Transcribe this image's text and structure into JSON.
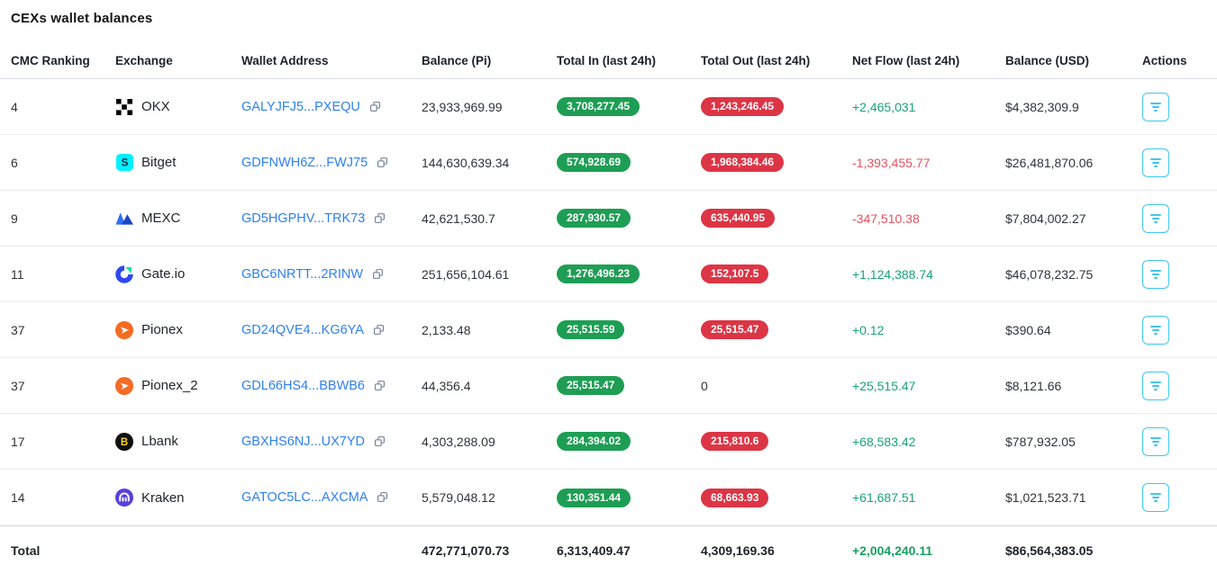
{
  "page": {
    "title": "CEXs wallet balances"
  },
  "colors": {
    "pill_green": "#1e9e54",
    "pill_red": "#dc3545",
    "net_flow_positive": "#18a17b",
    "net_flow_negative": "#e9515f",
    "address_link": "#2e80f2",
    "action_button_border": "#3ec7f0"
  },
  "table": {
    "columns": [
      "CMC Ranking",
      "Exchange",
      "Wallet Address",
      "Balance (Pi)",
      "Total In (last 24h)",
      "Total Out (last 24h)",
      "Net Flow (last 24h)",
      "Balance (USD)",
      "Actions"
    ],
    "rows": [
      {
        "rank": "4",
        "exchange": "OKX",
        "logo": "okx-logo",
        "address": "GALYJFJ5...PXEQU",
        "balance_pi": "23,933,969.99",
        "total_in": "3,708,277.45",
        "total_out": "1,243,246.45",
        "out_pill": true,
        "net_flow": "+2,465,031",
        "net_positive": true,
        "balance_usd": "$4,382,309.9"
      },
      {
        "rank": "6",
        "exchange": "Bitget",
        "logo": "bitget-logo",
        "address": "GDFNWH6Z...FWJ75",
        "balance_pi": "144,630,639.34",
        "total_in": "574,928.69",
        "total_out": "1,968,384.46",
        "out_pill": true,
        "net_flow": "-1,393,455.77",
        "net_positive": false,
        "balance_usd": "$26,481,870.06"
      },
      {
        "rank": "9",
        "exchange": "MEXC",
        "logo": "mexc-logo",
        "address": "GD5HGPHV...TRK73",
        "balance_pi": "42,621,530.7",
        "total_in": "287,930.57",
        "total_out": "635,440.95",
        "out_pill": true,
        "net_flow": "-347,510.38",
        "net_positive": false,
        "balance_usd": "$7,804,002.27"
      },
      {
        "rank": "11",
        "exchange": "Gate.io",
        "logo": "gateio-logo",
        "address": "GBC6NRTT...2RINW",
        "balance_pi": "251,656,104.61",
        "total_in": "1,276,496.23",
        "total_out": "152,107.5",
        "out_pill": true,
        "net_flow": "+1,124,388.74",
        "net_positive": true,
        "balance_usd": "$46,078,232.75"
      },
      {
        "rank": "37",
        "exchange": "Pionex",
        "logo": "pionex-logo",
        "address": "GD24QVE4...KG6YA",
        "balance_pi": "2,133.48",
        "total_in": "25,515.59",
        "total_out": "25,515.47",
        "out_pill": true,
        "net_flow": "+0.12",
        "net_positive": true,
        "balance_usd": "$390.64"
      },
      {
        "rank": "37",
        "exchange": "Pionex_2",
        "logo": "pionex-logo",
        "address": "GDL66HS4...BBWB6",
        "balance_pi": "44,356.4",
        "total_in": "25,515.47",
        "total_out": "0",
        "out_pill": false,
        "net_flow": "+25,515.47",
        "net_positive": true,
        "balance_usd": "$8,121.66"
      },
      {
        "rank": "17",
        "exchange": "Lbank",
        "logo": "lbank-logo",
        "address": "GBXHS6NJ...UX7YD",
        "balance_pi": "4,303,288.09",
        "total_in": "284,394.02",
        "total_out": "215,810.6",
        "out_pill": true,
        "net_flow": "+68,583.42",
        "net_positive": true,
        "balance_usd": "$787,932.05"
      },
      {
        "rank": "14",
        "exchange": "Kraken",
        "logo": "kraken-logo",
        "address": "GATOC5LC...AXCMA",
        "balance_pi": "5,579,048.12",
        "total_in": "130,351.44",
        "total_out": "68,663.93",
        "out_pill": true,
        "net_flow": "+61,687.51",
        "net_positive": true,
        "balance_usd": "$1,021,523.71"
      }
    ],
    "total": {
      "label": "Total",
      "balance_pi": "472,771,070.73",
      "total_in": "6,313,409.47",
      "total_out": "4,309,169.36",
      "net_flow": "+2,004,240.11",
      "balance_usd": "$86,564,383.05"
    }
  }
}
